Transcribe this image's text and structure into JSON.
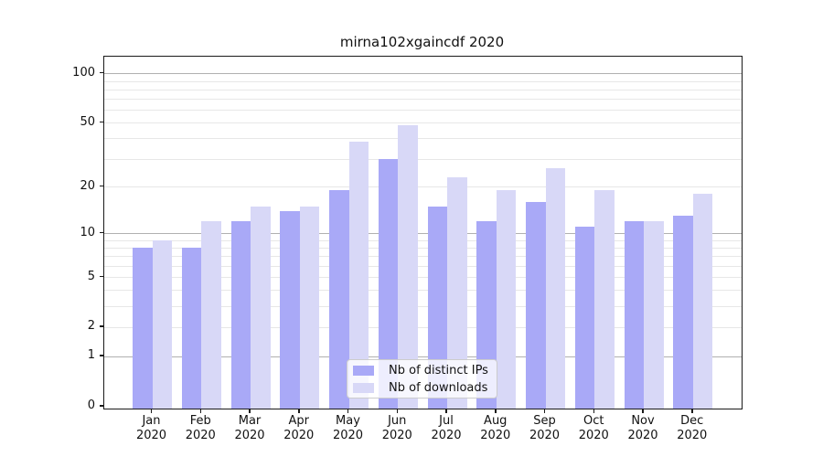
{
  "title": "mirna102xgaincdf 2020",
  "legend": {
    "entries": [
      {
        "label": "Nb of distinct IPs",
        "color": "#a9a9f7"
      },
      {
        "label": "Nb of downloads",
        "color": "#d8d8f7"
      }
    ]
  },
  "chart_data": {
    "type": "bar",
    "title": "mirna102xgaincdf 2020",
    "categories": [
      "Jan",
      "Feb",
      "Mar",
      "Apr",
      "May",
      "Jun",
      "Jul",
      "Aug",
      "Sep",
      "Oct",
      "Nov",
      "Dec"
    ],
    "year_label": "2020",
    "series": [
      {
        "name": "Nb of distinct IPs",
        "color": "#a9a9f7",
        "values": [
          8,
          8,
          12,
          14,
          19,
          30,
          15,
          12,
          16,
          11,
          12,
          13
        ]
      },
      {
        "name": "Nb of downloads",
        "color": "#d8d8f7",
        "values": [
          9,
          12,
          15,
          15,
          38,
          48,
          23,
          19,
          26,
          19,
          12,
          18
        ]
      }
    ],
    "xlabel": "",
    "ylabel": "",
    "yscale": "log1p",
    "ylim": [
      0,
      126
    ],
    "yticks": [
      0,
      1,
      2,
      5,
      10,
      20,
      50,
      100
    ],
    "major_gridlines": [
      1,
      10,
      100
    ],
    "minor_gridlines": [
      2,
      3,
      4,
      5,
      6,
      7,
      8,
      9,
      20,
      30,
      40,
      50,
      60,
      70,
      80,
      90
    ],
    "grid": true,
    "legend_position": "lower center"
  },
  "colors": {
    "background": "#ffffff",
    "bar_distinct_ips": "#a9a9f7",
    "bar_downloads": "#d8d8f7",
    "major_grid": "#b0b0b0",
    "minor_grid": "#e7e7e7",
    "axis": "#1a1a1a",
    "text": "#111111",
    "legend_border": "#cccccc"
  }
}
